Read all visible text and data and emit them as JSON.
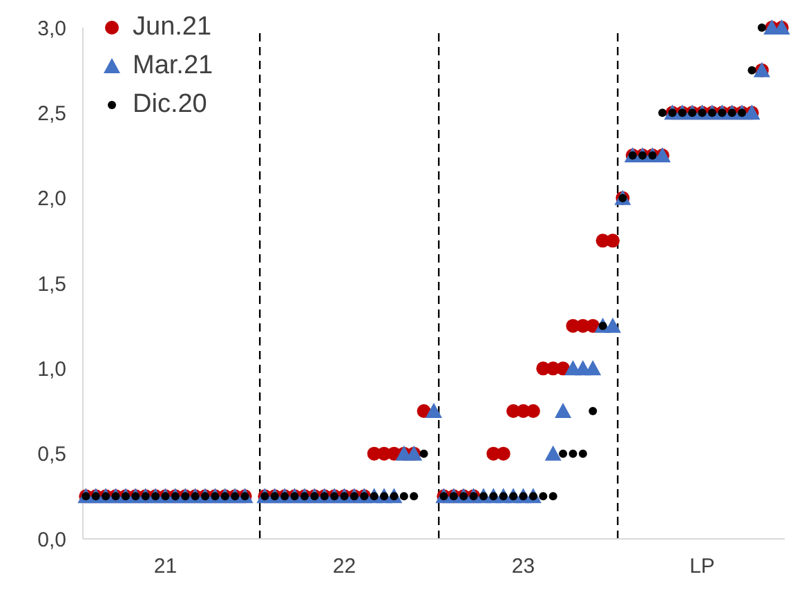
{
  "chart_data": {
    "type": "scatter",
    "categories": [
      null,
      null,
      null,
      null,
      null,
      null,
      null,
      null,
      "21",
      null,
      null,
      null,
      null,
      null,
      null,
      null,
      null,
      null,
      null,
      null,
      null,
      null,
      null,
      null,
      null,
      null,
      "22",
      null,
      null,
      null,
      null,
      null,
      null,
      null,
      null,
      null,
      null,
      null,
      null,
      null,
      null,
      null,
      null,
      null,
      "23",
      null,
      null,
      null,
      null,
      null,
      null,
      null,
      null,
      null,
      null,
      null,
      null,
      null,
      null,
      null,
      null,
      null,
      "LP",
      null,
      null,
      null,
      null,
      null,
      null,
      null,
      null
    ],
    "ylim": [
      0,
      3
    ],
    "yticks": [
      {
        "value": 0,
        "label": "0,0"
      },
      {
        "value": 0.5,
        "label": "0,5"
      },
      {
        "value": 1,
        "label": "1,0"
      },
      {
        "value": 1.5,
        "label": "1,5"
      },
      {
        "value": 2,
        "label": "2,0"
      },
      {
        "value": 2.5,
        "label": "2,5"
      },
      {
        "value": 3,
        "label": "3,0"
      }
    ],
    "grid": false,
    "legend": "top left",
    "series": [
      {
        "name": "Jun.21",
        "color": "#c00000",
        "marker": "circle",
        "values": [
          0.25,
          0.25,
          0.25,
          0.25,
          0.25,
          0.25,
          0.25,
          0.25,
          0.25,
          0.25,
          0.25,
          0.25,
          0.25,
          0.25,
          0.25,
          0.25,
          0.25,
          null,
          0.25,
          0.25,
          0.25,
          0.25,
          0.25,
          0.25,
          0.25,
          0.25,
          0.25,
          0.25,
          0.25,
          0.5,
          0.5,
          0.5,
          0.5,
          0.5,
          0.75,
          null,
          0.25,
          0.25,
          0.25,
          0.25,
          null,
          0.5,
          0.5,
          0.75,
          0.75,
          0.75,
          1.0,
          1.0,
          1.0,
          1.25,
          1.25,
          1.25,
          1.75,
          1.75,
          2.0,
          2.25,
          2.25,
          2.25,
          2.25,
          2.5,
          2.5,
          2.5,
          2.5,
          2.5,
          2.5,
          2.5,
          2.5,
          2.5,
          2.75,
          3.0,
          3.0
        ]
      },
      {
        "name": "Mar.21",
        "color": "#4472c4",
        "marker": "triangle",
        "values": [
          0.25,
          0.25,
          0.25,
          0.25,
          0.25,
          0.25,
          0.25,
          0.25,
          0.25,
          0.25,
          0.25,
          0.25,
          0.25,
          0.25,
          0.25,
          0.25,
          0.25,
          null,
          0.25,
          0.25,
          0.25,
          0.25,
          0.25,
          0.25,
          0.25,
          0.25,
          0.25,
          0.25,
          0.25,
          0.25,
          0.25,
          0.25,
          0.5,
          0.5,
          null,
          0.75,
          0.25,
          0.25,
          0.25,
          0.25,
          0.25,
          0.25,
          0.25,
          0.25,
          0.25,
          0.25,
          null,
          0.5,
          0.75,
          1.0,
          1.0,
          1.0,
          1.25,
          1.25,
          2.0,
          2.25,
          2.25,
          2.25,
          2.25,
          2.5,
          2.5,
          2.5,
          2.5,
          2.5,
          2.5,
          2.5,
          2.5,
          2.5,
          2.75,
          3.0,
          3.0
        ]
      },
      {
        "name": "Dic.20",
        "color": "#000000",
        "marker": "circle",
        "values": [
          0.25,
          0.25,
          0.25,
          0.25,
          0.25,
          0.25,
          0.25,
          0.25,
          0.25,
          0.25,
          0.25,
          0.25,
          0.25,
          0.25,
          0.25,
          0.25,
          0.25,
          null,
          0.25,
          0.25,
          0.25,
          0.25,
          0.25,
          0.25,
          0.25,
          0.25,
          0.25,
          0.25,
          0.25,
          0.25,
          0.25,
          0.25,
          0.25,
          0.25,
          0.5,
          null,
          0.25,
          0.25,
          0.25,
          0.25,
          0.25,
          0.25,
          0.25,
          0.25,
          0.25,
          0.25,
          0.25,
          0.25,
          0.5,
          0.5,
          0.5,
          0.75,
          1.25,
          null,
          2.0,
          2.25,
          2.25,
          2.25,
          2.5,
          2.5,
          2.5,
          2.5,
          2.5,
          2.5,
          2.5,
          2.5,
          2.5,
          2.75,
          3.0,
          null,
          null
        ]
      }
    ]
  }
}
